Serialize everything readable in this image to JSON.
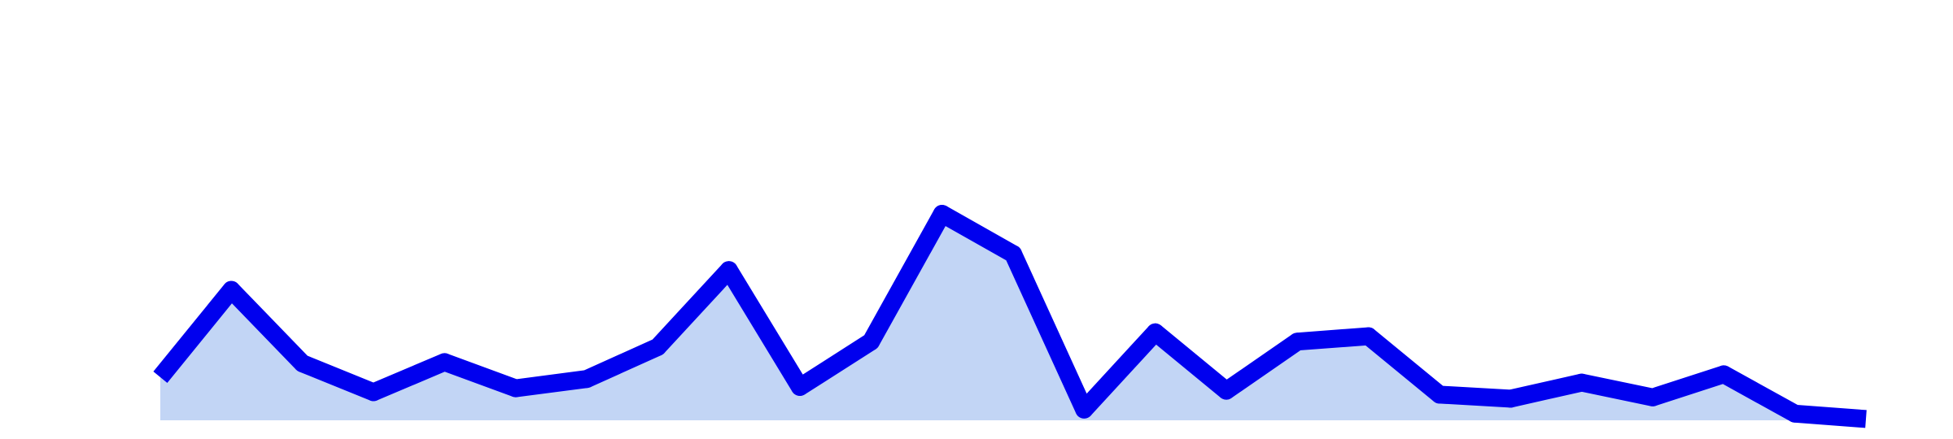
{
  "chart_data": {
    "type": "area",
    "x": [
      1,
      2,
      3,
      4,
      5,
      6,
      7,
      8,
      9,
      10,
      11,
      12,
      13,
      14,
      15,
      16,
      17,
      18,
      19,
      20,
      21,
      22,
      23,
      24,
      25
    ],
    "series": [
      {
        "values": [
          26.5,
          80.2,
          35.0,
          17.3,
          35.8,
          19.7,
          25.4,
          45.1,
          92.4,
          20.5,
          48.4,
          127.0,
          102.3,
          6.6,
          54.1,
          18.2,
          48.4,
          51.7,
          15.8,
          13.3,
          23.2,
          14.1,
          28.3,
          4.1,
          0.8
        ]
      }
    ],
    "ylim": [
      0,
      256
    ],
    "grid": false,
    "legend": "none",
    "colors": {
      "line": "#0000ee",
      "fill": "#c2d5f5",
      "background": "#ffffff"
    }
  }
}
